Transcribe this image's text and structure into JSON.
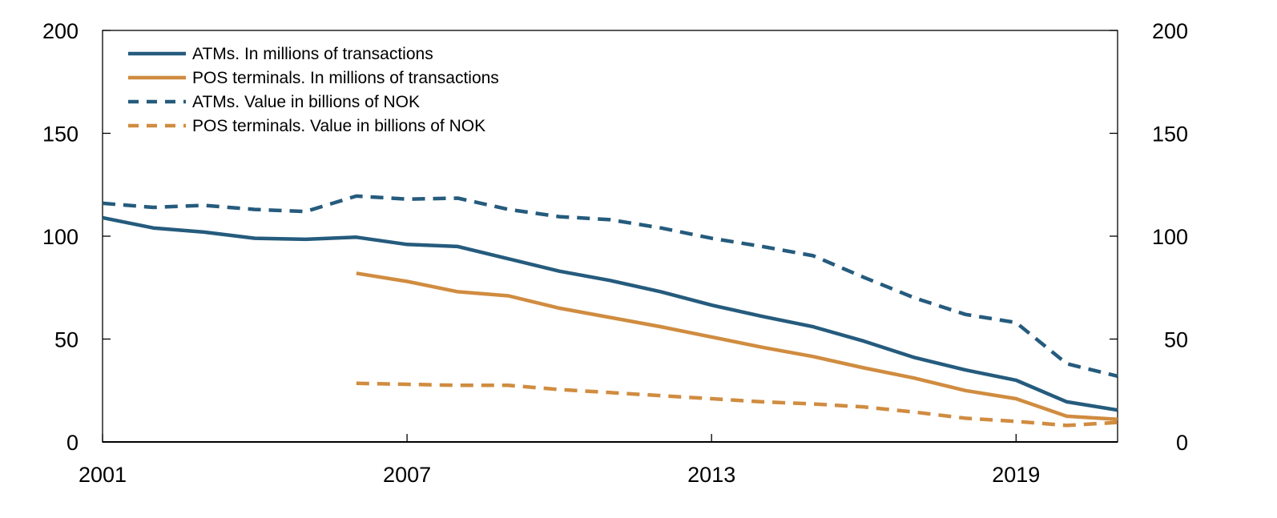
{
  "chart_data": {
    "type": "line",
    "title": "",
    "xlabel": "",
    "ylabel": "",
    "xlim": [
      2001,
      2021
    ],
    "ylim": [
      0,
      200
    ],
    "y_ticks": [
      0,
      50,
      100,
      150,
      200
    ],
    "y_ticks_right": [
      0,
      50,
      100,
      150,
      200
    ],
    "x_ticks": [
      2001,
      2007,
      2013,
      2019
    ],
    "grid": false,
    "legend_position": "top-left",
    "series": [
      {
        "name": "ATMs. In millions of transactions",
        "color": "#255b7d",
        "style": "solid",
        "x": [
          2001,
          2002,
          2003,
          2004,
          2005,
          2006,
          2007,
          2008,
          2009,
          2010,
          2011,
          2012,
          2013,
          2014,
          2015,
          2016,
          2017,
          2018,
          2019,
          2020,
          2021
        ],
        "y": [
          109,
          104,
          102,
          99,
          98.5,
          99.5,
          96,
          95,
          89,
          83,
          78.5,
          73,
          66.5,
          61,
          56,
          49,
          41,
          35,
          30,
          19.5,
          15.5
        ]
      },
      {
        "name": "POS terminals. In millions of transactions",
        "color": "#d08c40",
        "style": "solid",
        "x": [
          2006,
          2007,
          2008,
          2009,
          2010,
          2011,
          2012,
          2013,
          2014,
          2015,
          2016,
          2017,
          2018,
          2019,
          2020,
          2021
        ],
        "y": [
          82,
          78,
          73,
          71,
          65,
          60.5,
          56,
          51,
          46,
          41.5,
          36,
          31,
          25,
          21,
          12.5,
          11
        ]
      },
      {
        "name": "ATMs. Value in billions of NOK",
        "color": "#255b7d",
        "style": "dashed",
        "x": [
          2001,
          2002,
          2003,
          2004,
          2005,
          2006,
          2007,
          2008,
          2009,
          2010,
          2011,
          2012,
          2013,
          2014,
          2015,
          2016,
          2017,
          2018,
          2019,
          2020,
          2021
        ],
        "y": [
          116,
          114,
          115,
          113,
          112,
          119.5,
          118,
          118.5,
          113,
          109.5,
          108,
          104,
          99,
          95,
          90.5,
          80,
          70,
          62,
          58,
          38,
          32
        ]
      },
      {
        "name": "POS terminals. Value in billions of NOK",
        "color": "#d08c40",
        "style": "dashed",
        "x": [
          2006,
          2007,
          2008,
          2009,
          2010,
          2011,
          2012,
          2013,
          2014,
          2015,
          2016,
          2017,
          2018,
          2019,
          2020,
          2021
        ],
        "y": [
          28.5,
          28,
          27.5,
          27.5,
          25.5,
          24,
          22.5,
          21,
          19.5,
          18.5,
          17,
          14.5,
          11.5,
          10,
          8,
          9.5
        ]
      }
    ]
  }
}
